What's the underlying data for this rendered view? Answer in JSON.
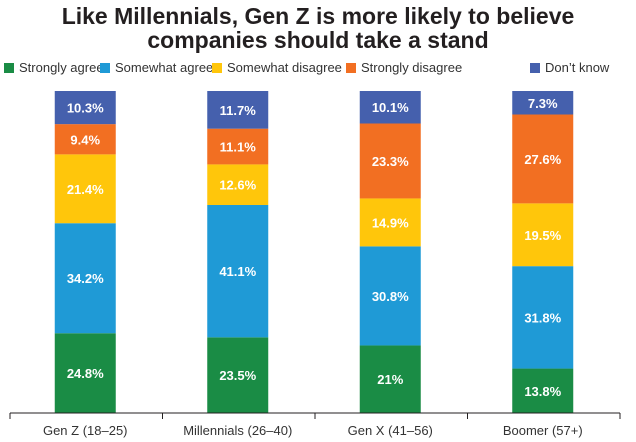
{
  "chart_data": {
    "type": "bar",
    "stacked": true,
    "title": "Like Millennials, Gen Z is more likely to believe companies should take a stand",
    "title_lines": [
      "Like Millennials, Gen Z is more likely to believe",
      "companies should take a stand"
    ],
    "xlabel": "",
    "ylabel": "",
    "ylim": [
      0,
      100
    ],
    "grid": false,
    "legend_position": "top",
    "categories": [
      "Gen Z (18–25)",
      "Millennials (26–40)",
      "Gen X (41–56)",
      "Boomer (57+)"
    ],
    "series": [
      {
        "name": "Strongly agree",
        "color": "#1a8c45",
        "values": [
          24.8,
          23.5,
          21,
          13.8
        ],
        "labels": [
          "24.8%",
          "23.5%",
          "21%",
          "13.8%"
        ]
      },
      {
        "name": "Somewhat agree",
        "color": "#1f9ad6",
        "values": [
          34.2,
          41.1,
          30.8,
          31.8
        ],
        "labels": [
          "34.2%",
          "41.1%",
          "30.8%",
          "31.8%"
        ]
      },
      {
        "name": "Somewhat disagree",
        "color": "#ffc60b",
        "values": [
          21.4,
          12.6,
          14.9,
          19.5
        ],
        "labels": [
          "21.4%",
          "12.6%",
          "14.9%",
          "19.5%"
        ]
      },
      {
        "name": "Strongly disagree",
        "color": "#f26f22",
        "values": [
          9.4,
          11.1,
          23.3,
          27.6
        ],
        "labels": [
          "9.4%",
          "11.1%",
          "23.3%",
          "27.6%"
        ]
      },
      {
        "name": "Don’t know",
        "color": "#4560ad",
        "values": [
          10.3,
          11.7,
          10.1,
          7.3
        ],
        "labels": [
          "10.3%",
          "11.7%",
          "10.1%",
          "7.3%"
        ]
      }
    ]
  }
}
